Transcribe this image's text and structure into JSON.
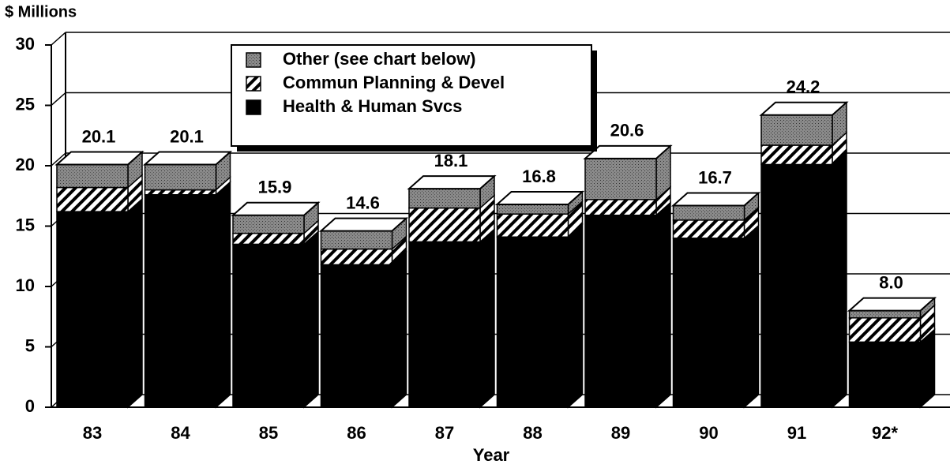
{
  "chart_data": {
    "type": "bar3d_stacked",
    "y_label": "$ Millions",
    "x_label": "Year",
    "categories": [
      "83",
      "84",
      "85",
      "86",
      "87",
      "88",
      "89",
      "90",
      "91",
      "92*"
    ],
    "series": [
      {
        "name": "Health & Human Svcs",
        "color": "#000000",
        "values": [
          16.2,
          17.6,
          13.5,
          11.8,
          13.7,
          14.1,
          15.9,
          14.0,
          20.1,
          5.4
        ]
      },
      {
        "name": "Commun Planning & Devel",
        "color": "hatch",
        "values": [
          2.0,
          0.4,
          0.9,
          1.3,
          2.8,
          1.9,
          1.3,
          1.5,
          1.6,
          2.0
        ]
      },
      {
        "name": "Other (see chart below)",
        "color": "#7a7a7a",
        "values": [
          1.9,
          2.1,
          1.5,
          1.5,
          1.6,
          0.8,
          3.4,
          1.2,
          2.5,
          0.6
        ]
      }
    ],
    "totals": [
      20.1,
      20.1,
      15.9,
      14.6,
      18.1,
      16.8,
      20.6,
      16.7,
      24.2,
      8.0
    ],
    "totals_labels": [
      "20.1",
      "20.1",
      "15.9",
      "14.6",
      "18.1",
      "16.8",
      "20.6",
      "16.7",
      "24.2",
      "8.0"
    ],
    "ylim": [
      0,
      30
    ],
    "yticks": [
      0,
      5,
      10,
      15,
      20,
      25,
      30
    ],
    "grid": true
  }
}
